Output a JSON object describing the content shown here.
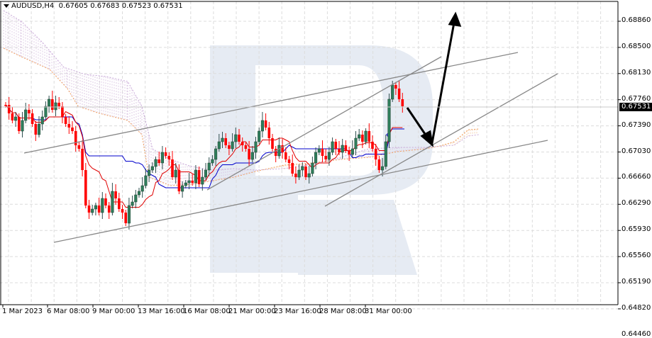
{
  "header": {
    "symbol": "AUDUSD,H4",
    "ohlc": "0.67605 0.67683 0.67523 0.67531"
  },
  "chart_data": {
    "type": "candlestick",
    "title": "AUDUSD,H4",
    "ohlc_current": {
      "open": 0.67605,
      "high": 0.67683,
      "low": 0.67523,
      "close": 0.67531
    },
    "current_price": "0.67531",
    "y_ticks": [
      "0.68860",
      "0.68500",
      "0.68130",
      "0.67760",
      "0.67390",
      "0.67030",
      "0.66660",
      "0.66290",
      "0.65930",
      "0.65560",
      "0.65190",
      "0.64820",
      "0.64460"
    ],
    "x_ticks": [
      "1 Mar 2023",
      "6 Mar 08:00",
      "9 Mar 00:00",
      "13 Mar 16:00",
      "16 Mar 08:00",
      "21 Mar 00:00",
      "23 Mar 16:00",
      "28 Mar 08:00",
      "31 Mar 00:00"
    ],
    "ylim": [
      0.6442,
      0.6922
    ],
    "indicators": [
      "Ichimoku Kinko Hyo (Tenkan-sen red, Kijun-sen blue, Kumo cloud orange/violet)"
    ],
    "annotations": [
      "Ascending channel trendlines (gray)",
      "Forecast arrow down to ~0.6700 then up to ~0.6895 (black)"
    ],
    "grid": true,
    "colors": {
      "bull": "#2e7d5b",
      "bear": "#ff0000",
      "tenkan": "#e00000",
      "kijun": "#0000cc",
      "span_a": "#f0a060",
      "span_b": "#c8a8d8",
      "trend": "#888888",
      "arrow": "#000000"
    }
  },
  "colors": {
    "grid": "#dcdcdc",
    "watermark": "#e6ebf3",
    "axis": "#000000"
  }
}
